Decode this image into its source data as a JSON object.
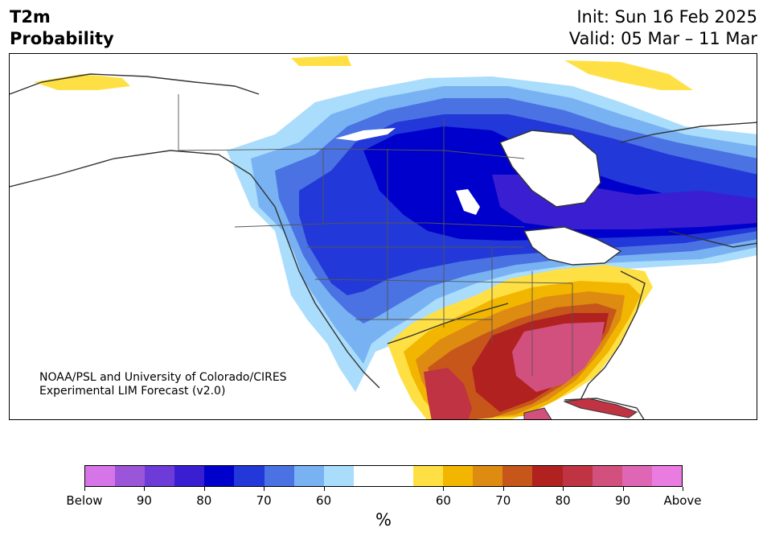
{
  "header": {
    "variable": "T2m",
    "product": "Probability",
    "init": "Init: Sun 16 Feb 2025",
    "valid": "Valid: 05 Mar – 11 Mar"
  },
  "credit": {
    "line1": "NOAA/PSL and University of Colorado/CIRES",
    "line2": "Experimental LIM Forecast (v2.0)"
  },
  "colorbar": {
    "unit": "%",
    "colors": [
      "#d675e8",
      "#9b55d8",
      "#6d3bd8",
      "#3a1ed2",
      "#0000cc",
      "#2238d8",
      "#4a72e2",
      "#78b2f2",
      "#aadcfc",
      "#ffffff",
      "#ffffff",
      "#ffe044",
      "#f2b600",
      "#de8b12",
      "#c6561a",
      "#b0211f",
      "#c03342",
      "#d2507e",
      "#df66b4",
      "#ea7be0"
    ],
    "tick_labels": [
      "Below",
      "90",
      "80",
      "70",
      "60",
      "60",
      "70",
      "80",
      "90",
      "Above"
    ],
    "tick_index": [
      0,
      2,
      4,
      6,
      8,
      12,
      14,
      16,
      18,
      20
    ]
  },
  "legend_meaning": {
    "cool_side": "Below normal probability (purple/blue)",
    "warm_side": "Above normal probability (yellow/red/pink)"
  }
}
